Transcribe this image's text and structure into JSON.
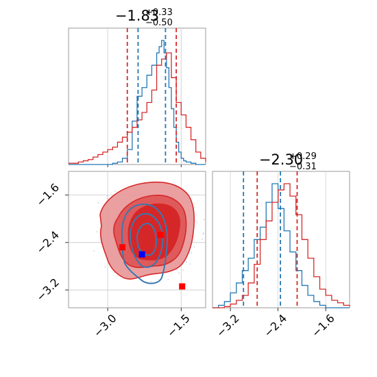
{
  "chart_data": [
    {
      "type": "histogram",
      "panel": "marginal-x",
      "title": {
        "main": "−1.83",
        "sup": "+0.33",
        "sub": "−0.50"
      },
      "xlim": [
        -3.8,
        -1.0
      ],
      "grid": true,
      "series": [
        {
          "name": "",
          "color": "#1f77b4",
          "x": [
            -3.8,
            -3.7,
            -3.6,
            -3.5,
            -3.4,
            -3.3,
            -3.2,
            -3.1,
            -3.0,
            -2.9,
            -2.8,
            -2.7,
            -2.6,
            -2.5,
            -2.4,
            -2.3,
            -2.2,
            -2.1,
            -2.0,
            -1.95,
            -1.9,
            -1.85,
            -1.8,
            -1.75,
            -1.7,
            -1.65,
            -1.6,
            -1.55,
            -1.5,
            -1.45,
            -1.4,
            -1.3,
            -1.2,
            -1.1,
            -1.0
          ],
          "y": [
            0,
            0,
            0,
            0,
            0,
            0,
            0,
            0,
            0,
            0.01,
            0.02,
            0.05,
            0.12,
            0.35,
            0.55,
            0.62,
            0.72,
            0.8,
            0.9,
            0.95,
            1.0,
            0.9,
            0.78,
            0.62,
            0.45,
            0.3,
            0.18,
            0.1,
            0.05,
            0.03,
            0.02,
            0.01,
            0,
            0,
            0
          ]
        },
        {
          "name": "",
          "color": "#d62728",
          "x": [
            -3.8,
            -3.7,
            -3.6,
            -3.5,
            -3.4,
            -3.3,
            -3.2,
            -3.1,
            -3.0,
            -2.9,
            -2.8,
            -2.7,
            -2.6,
            -2.5,
            -2.4,
            -2.3,
            -2.2,
            -2.1,
            -2.0,
            -1.9,
            -1.8,
            -1.7,
            -1.6,
            -1.5,
            -1.4,
            -1.3,
            -1.2,
            -1.1,
            -1.0
          ],
          "y": [
            0.01,
            0.01,
            0.02,
            0.03,
            0.04,
            0.06,
            0.08,
            0.1,
            0.12,
            0.14,
            0.18,
            0.22,
            0.26,
            0.3,
            0.36,
            0.42,
            0.5,
            0.6,
            0.8,
            0.85,
            0.9,
            0.7,
            0.5,
            0.4,
            0.3,
            0.2,
            0.1,
            0.05,
            0.02
          ]
        }
      ],
      "quantile_lines": [
        {
          "x": -2.6,
          "color": "#d62728"
        },
        {
          "x": -2.38,
          "color": "#1f77b4"
        },
        {
          "x": -1.82,
          "color": "#1f77b4"
        },
        {
          "x": -1.6,
          "color": "#d62728"
        }
      ]
    },
    {
      "type": "contour",
      "panel": "joint",
      "xlim": [
        -3.8,
        -1.0
      ],
      "ylim": [
        -3.5,
        -1.2
      ],
      "xticks": [
        -3.0,
        -1.5
      ],
      "xtick_labels": [
        "−3.0",
        "−1.5"
      ],
      "yticks": [
        -1.6,
        -2.4,
        -3.2
      ],
      "ytick_labels": [
        "−1.6",
        "−2.4",
        "−3.2"
      ],
      "grid": true,
      "markers": [
        {
          "x": -2.7,
          "y": -2.48,
          "color": "#ff0000"
        },
        {
          "x": -1.92,
          "y": -2.27,
          "color": "#ff0000"
        },
        {
          "x": -1.48,
          "y": -3.14,
          "color": "#ff0000"
        },
        {
          "x": -2.3,
          "y": -2.6,
          "color": "#0000ff"
        }
      ],
      "red_contour_color": "#d62728",
      "blue_contour_color": "#1f77b4"
    },
    {
      "type": "histogram",
      "panel": "marginal-y",
      "title": {
        "main": "−2.30",
        "sup": "+0.29",
        "sub": "−0.31"
      },
      "xlim": [
        -3.5,
        -1.2
      ],
      "xticks": [
        -3.2,
        -2.4,
        -1.6
      ],
      "xtick_labels": [
        "−3.2",
        "−2.4",
        "−1.6"
      ],
      "grid": true,
      "series": [
        {
          "name": "",
          "color": "#1f77b4",
          "x": [
            -3.5,
            -3.4,
            -3.3,
            -3.2,
            -3.1,
            -3.0,
            -2.9,
            -2.8,
            -2.7,
            -2.6,
            -2.5,
            -2.4,
            -2.3,
            -2.2,
            -2.1,
            -2.0,
            -1.9,
            -1.8,
            -1.7,
            -1.6,
            -1.5,
            -1.4,
            -1.3,
            -1.2
          ],
          "y": [
            0,
            0.02,
            0.05,
            0.12,
            0.2,
            0.3,
            0.4,
            0.55,
            0.65,
            0.85,
            1.0,
            0.8,
            0.62,
            0.45,
            0.3,
            0.18,
            0.1,
            0.05,
            0.02,
            0,
            0,
            0,
            0,
            0
          ]
        },
        {
          "name": "",
          "color": "#d62728",
          "x": [
            -3.5,
            -3.4,
            -3.3,
            -3.2,
            -3.1,
            -3.0,
            -2.9,
            -2.8,
            -2.7,
            -2.6,
            -2.5,
            -2.4,
            -2.3,
            -2.2,
            -2.1,
            -2.0,
            -1.9,
            -1.8,
            -1.7,
            -1.6,
            -1.5,
            -1.4,
            -1.3,
            -1.2
          ],
          "y": [
            0,
            0,
            0.01,
            0.03,
            0.06,
            0.1,
            0.2,
            0.35,
            0.55,
            0.7,
            0.85,
            0.95,
            1.0,
            0.9,
            0.75,
            0.55,
            0.4,
            0.25,
            0.15,
            0.1,
            0.06,
            0.04,
            0.02,
            0.01
          ]
        }
      ],
      "quantile_lines": [
        {
          "x": -2.98,
          "color": "#1f77b4"
        },
        {
          "x": -2.75,
          "color": "#d62728"
        },
        {
          "x": -2.36,
          "color": "#1f77b4"
        },
        {
          "x": -2.08,
          "color": "#d62728"
        }
      ]
    }
  ]
}
